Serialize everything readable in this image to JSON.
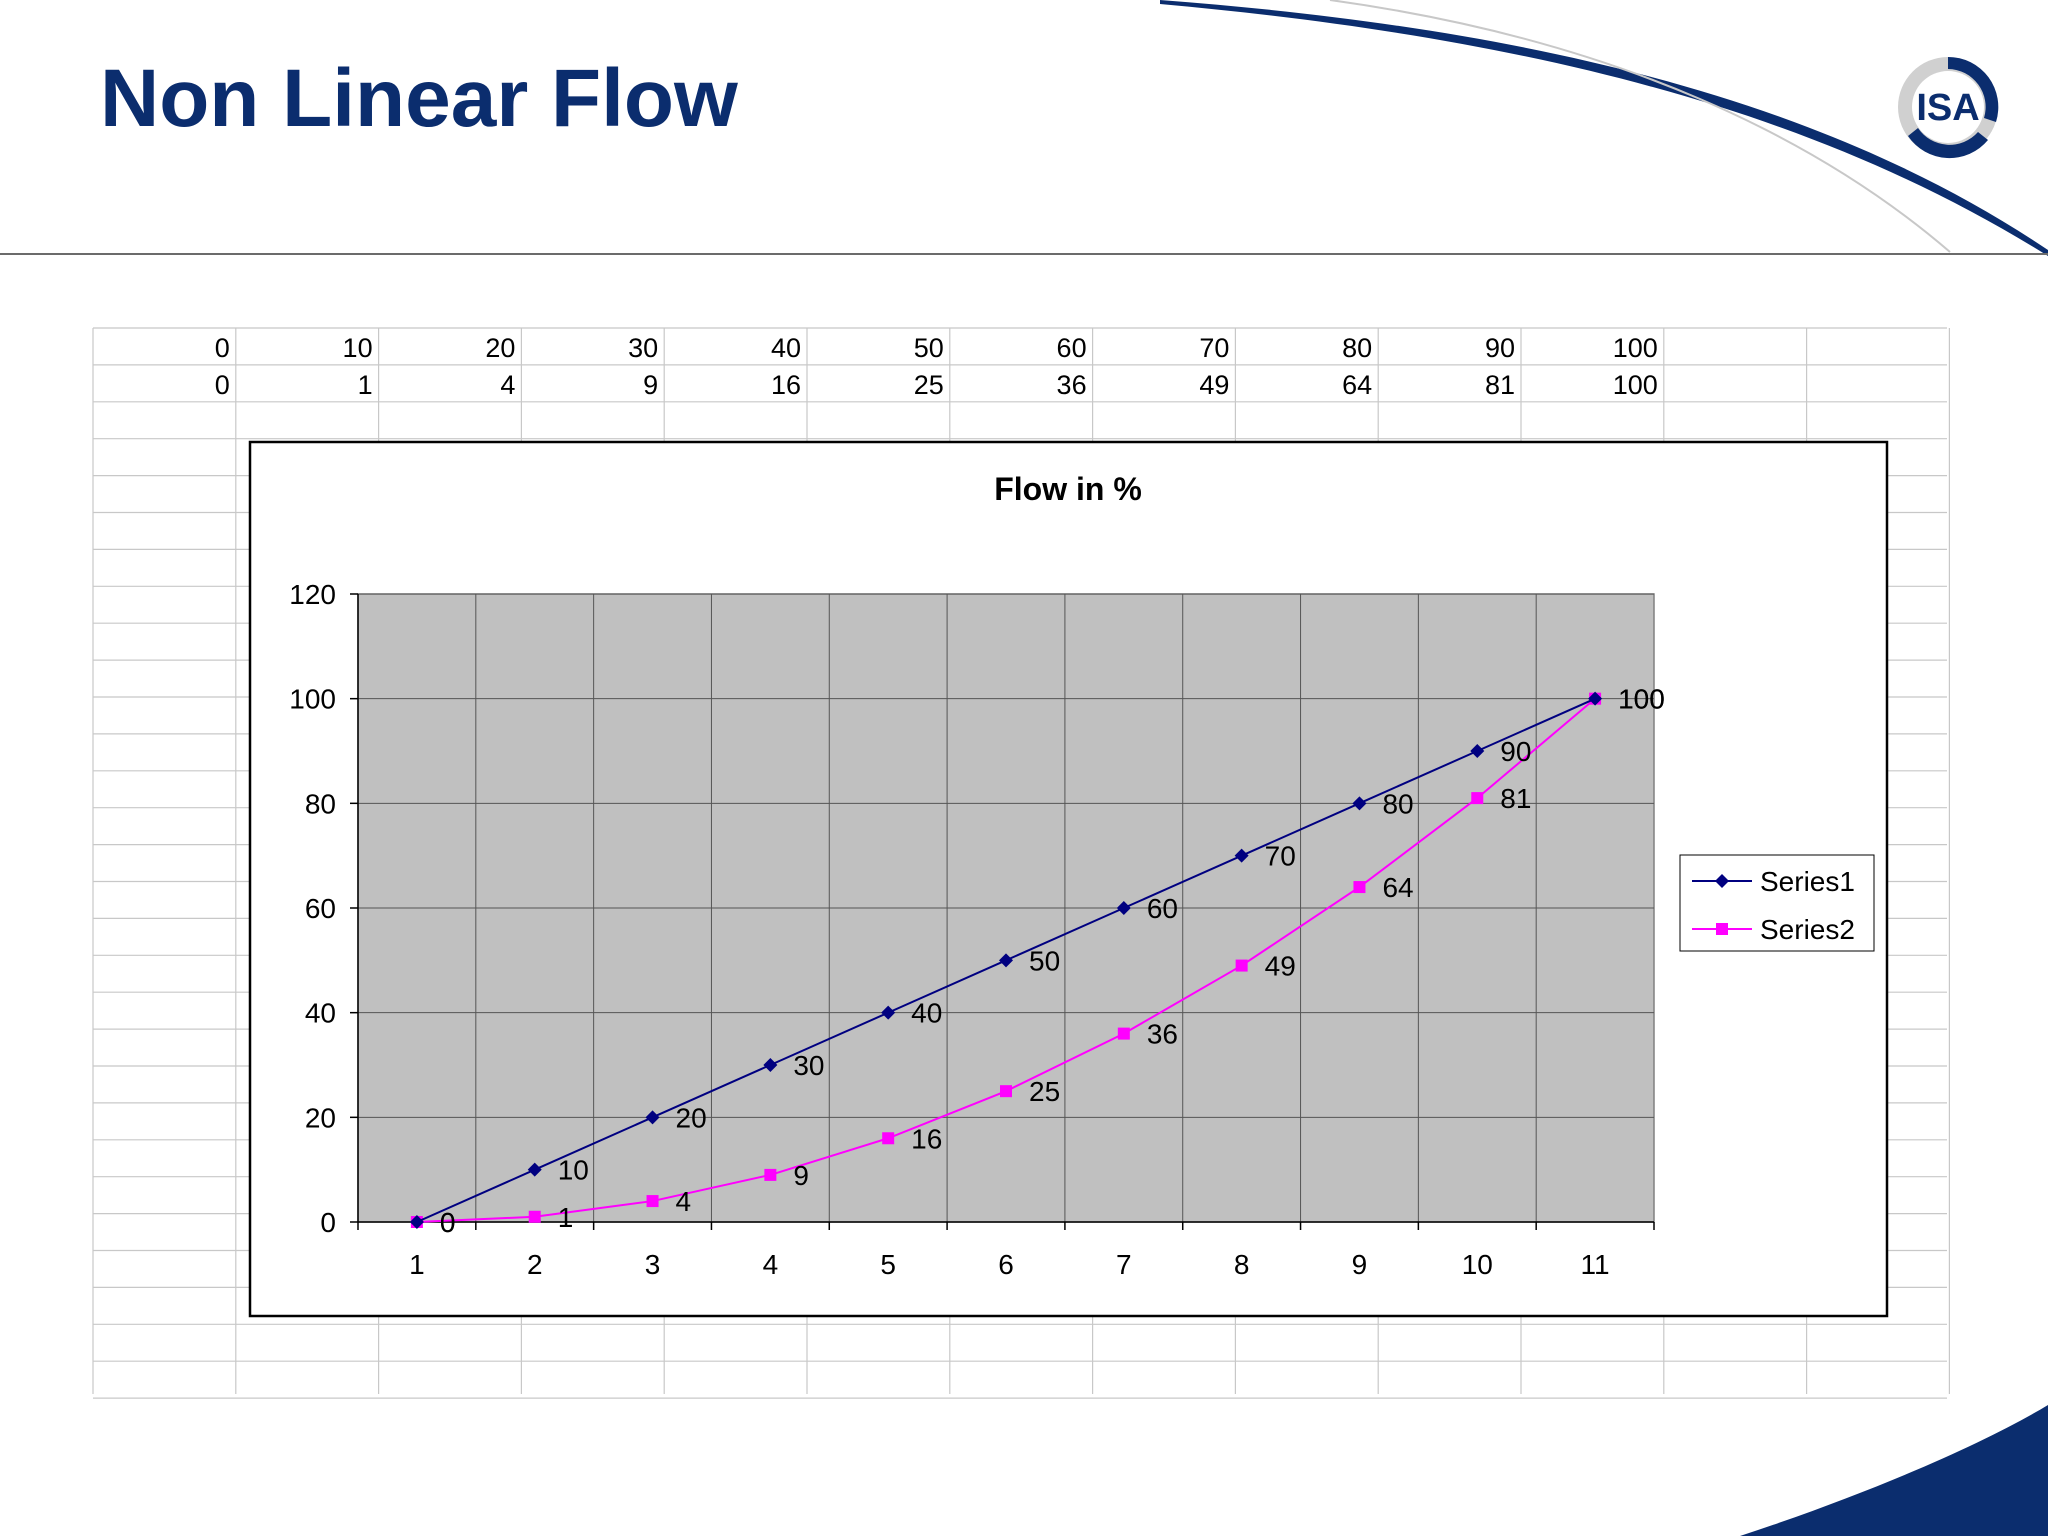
{
  "slide": {
    "title": "Non Linear Flow",
    "logo_text": "ISA"
  },
  "sheet": {
    "rows": [
      [
        "0",
        "10",
        "20",
        "30",
        "40",
        "50",
        "60",
        "70",
        "80",
        "90",
        "100"
      ],
      [
        "0",
        "1",
        "4",
        "9",
        "16",
        "25",
        "36",
        "49",
        "64",
        "81",
        "100"
      ]
    ]
  },
  "colors": {
    "title": "#0b2d6e",
    "plot_area": "#c0c0c0",
    "series1": "#000080",
    "series2": "#ff00ff"
  },
  "chart_data": {
    "type": "line",
    "title": "Flow in %",
    "xlabel": "",
    "ylabel": "",
    "categories": [
      "1",
      "2",
      "3",
      "4",
      "5",
      "6",
      "7",
      "8",
      "9",
      "10",
      "11"
    ],
    "ylim": [
      0,
      120
    ],
    "yticks": [
      "0",
      "20",
      "40",
      "60",
      "80",
      "100",
      "120"
    ],
    "grid": true,
    "legend": "right",
    "series": [
      {
        "name": "Series1",
        "values": [
          0,
          10,
          20,
          30,
          40,
          50,
          60,
          70,
          80,
          90,
          100
        ],
        "marker": "diamond",
        "color": "#000080"
      },
      {
        "name": "Series2",
        "values": [
          0,
          1,
          4,
          9,
          16,
          25,
          36,
          49,
          64,
          81,
          100
        ],
        "marker": "square",
        "color": "#ff00ff"
      }
    ]
  }
}
